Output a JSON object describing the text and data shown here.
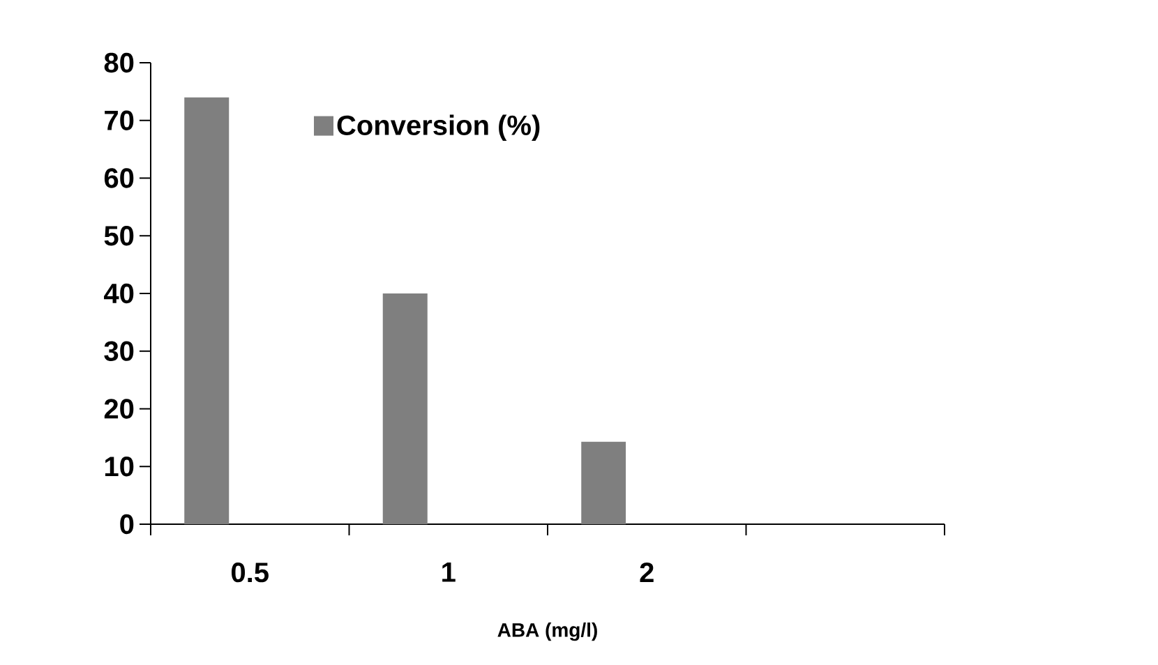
{
  "chart_data": {
    "type": "bar",
    "xlabel": "ABA (mg/l)",
    "categories": [
      "0.5",
      "1",
      "2",
      null
    ],
    "series": [
      {
        "name": "Conversion (%)",
        "color": "#7f7f7f",
        "values": [
          74,
          40,
          14.3,
          null
        ]
      }
    ],
    "ylim": [
      0,
      80
    ],
    "yticks": [
      0,
      10,
      20,
      30,
      40,
      50,
      60,
      70,
      80
    ],
    "grid": false,
    "legend": "top"
  }
}
